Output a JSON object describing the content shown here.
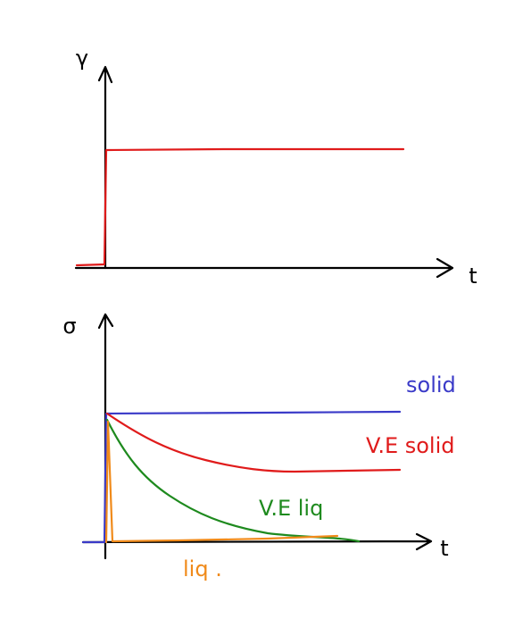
{
  "top_plot": {
    "y_label": "γ",
    "x_label": "t"
  },
  "bottom_plot": {
    "y_label": "σ",
    "x_label": "t",
    "curves": [
      {
        "label": "solid",
        "color": "#3a3ac8"
      },
      {
        "label": "V.E solid",
        "color": "#e01b1b"
      },
      {
        "label": "V.E liq",
        "color": "#1e8a1e"
      },
      {
        "label": "liq .",
        "color": "#f08a1a"
      }
    ]
  }
}
